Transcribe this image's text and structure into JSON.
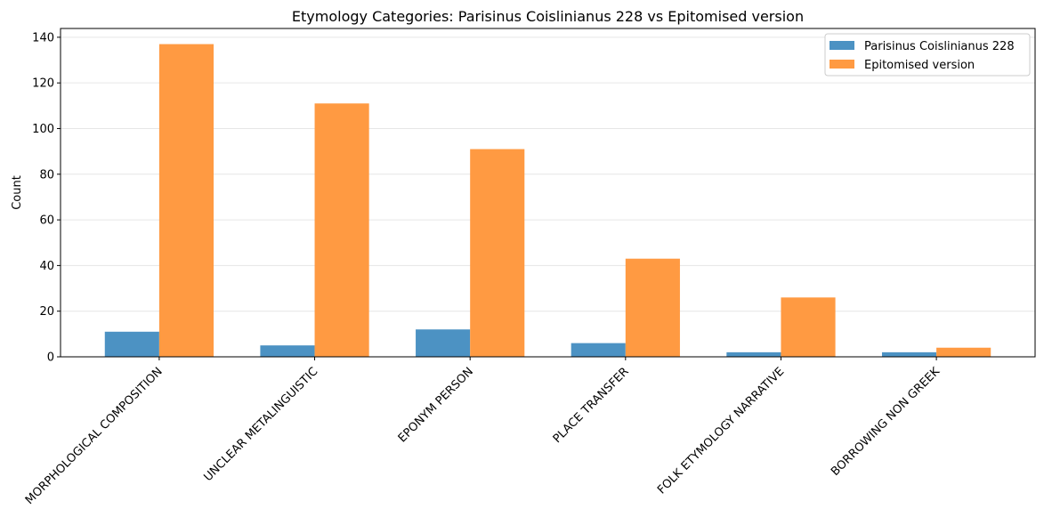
{
  "chart_data": {
    "type": "bar",
    "title": "Etymology Categories: Parisinus Coislinianus 228 vs Epitomised version",
    "xlabel": "",
    "ylabel": "Count",
    "categories": [
      "MORPHOLOGICAL COMPOSITION",
      "UNCLEAR METALINGUISTIC",
      "EPONYM PERSON",
      "PLACE TRANSFER",
      "FOLK ETYMOLOGY NARRATIVE",
      "BORROWING NON GREEK"
    ],
    "series": [
      {
        "name": "Parisinus Coislinianus 228",
        "color": "#4c92c3",
        "values": [
          11,
          5,
          12,
          6,
          2,
          2
        ]
      },
      {
        "name": "Epitomised version",
        "color": "#ff9a42",
        "values": [
          137,
          111,
          91,
          43,
          26,
          4
        ]
      }
    ],
    "ylim": [
      0,
      143.85
    ],
    "yticks": [
      0,
      20,
      40,
      60,
      80,
      100,
      120,
      140
    ],
    "grid": "y",
    "legend": "top-right"
  }
}
